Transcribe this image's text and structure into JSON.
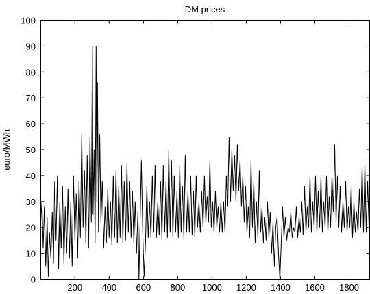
{
  "chart_data": {
    "type": "line",
    "title": "DM prices",
    "ylabel": "euro/MWh",
    "xlabel": "",
    "xlim": [
      1,
      1920
    ],
    "ylim": [
      0,
      100
    ],
    "x_ticks": [
      200,
      400,
      600,
      800,
      1000,
      1200,
      1400,
      1600,
      1800
    ],
    "x_tick_labels": [
      "200",
      "400",
      "600",
      "800",
      "1000",
      "1200",
      "1400",
      "1600",
      "1800"
    ],
    "y_ticks": [
      0,
      10,
      20,
      30,
      40,
      50,
      60,
      70,
      80,
      90,
      100
    ],
    "y_tick_labels": [
      "0",
      "10",
      "20",
      "30",
      "40",
      "50",
      "60",
      "70",
      "80",
      "90",
      "100"
    ],
    "grid": false,
    "line_color": "#000000",
    "series": [
      {
        "points": [
          [
            1,
            22
          ],
          [
            8,
            30
          ],
          [
            15,
            12
          ],
          [
            22,
            28
          ],
          [
            30,
            5
          ],
          [
            38,
            24
          ],
          [
            45,
            1
          ],
          [
            52,
            18
          ],
          [
            60,
            8
          ],
          [
            68,
            26
          ],
          [
            75,
            6
          ],
          [
            82,
            38
          ],
          [
            90,
            15
          ],
          [
            98,
            40
          ],
          [
            105,
            4
          ],
          [
            112,
            30
          ],
          [
            120,
            12
          ],
          [
            128,
            36
          ],
          [
            136,
            6
          ],
          [
            144,
            28
          ],
          [
            152,
            10
          ],
          [
            160,
            35
          ],
          [
            168,
            8
          ],
          [
            176,
            30
          ],
          [
            184,
            5
          ],
          [
            192,
            40
          ],
          [
            200,
            15
          ],
          [
            208,
            33
          ],
          [
            216,
            8
          ],
          [
            224,
            38
          ],
          [
            232,
            16
          ],
          [
            240,
            56
          ],
          [
            248,
            20
          ],
          [
            256,
            42
          ],
          [
            264,
            14
          ],
          [
            272,
            48
          ],
          [
            280,
            12
          ],
          [
            288,
            55
          ],
          [
            296,
            22
          ],
          [
            302,
            90
          ],
          [
            306,
            25
          ],
          [
            312,
            50
          ],
          [
            318,
            14
          ],
          [
            324,
            90
          ],
          [
            328,
            30
          ],
          [
            332,
            76
          ],
          [
            338,
            18
          ],
          [
            345,
            56
          ],
          [
            352,
            22
          ],
          [
            360,
            38
          ],
          [
            368,
            12
          ],
          [
            376,
            28
          ],
          [
            384,
            14
          ],
          [
            392,
            35
          ],
          [
            400,
            16
          ],
          [
            408,
            30
          ],
          [
            416,
            13
          ],
          [
            424,
            40
          ],
          [
            432,
            16
          ],
          [
            440,
            42
          ],
          [
            448,
            14
          ],
          [
            456,
            36
          ],
          [
            464,
            16
          ],
          [
            472,
            44
          ],
          [
            480,
            14
          ],
          [
            488,
            38
          ],
          [
            496,
            15
          ],
          [
            504,
            45
          ],
          [
            512,
            18
          ],
          [
            520,
            38
          ],
          [
            528,
            16
          ],
          [
            536,
            34
          ],
          [
            544,
            14
          ],
          [
            552,
            30
          ],
          [
            560,
            10
          ],
          [
            568,
            26
          ],
          [
            574,
            0
          ],
          [
            580,
            20
          ],
          [
            588,
            46
          ],
          [
            596,
            18
          ],
          [
            604,
            1
          ],
          [
            612,
            14
          ],
          [
            620,
            36
          ],
          [
            628,
            16
          ],
          [
            636,
            30
          ],
          [
            644,
            16
          ],
          [
            652,
            40
          ],
          [
            660,
            18
          ],
          [
            668,
            44
          ],
          [
            676,
            16
          ],
          [
            684,
            30
          ],
          [
            692,
            17
          ],
          [
            700,
            38
          ],
          [
            708,
            15
          ],
          [
            716,
            44
          ],
          [
            724,
            18
          ],
          [
            732,
            38
          ],
          [
            740,
            16
          ],
          [
            748,
            50
          ],
          [
            756,
            18
          ],
          [
            764,
            46
          ],
          [
            772,
            16
          ],
          [
            780,
            40
          ],
          [
            788,
            18
          ],
          [
            796,
            34
          ],
          [
            804,
            16
          ],
          [
            812,
            44
          ],
          [
            820,
            18
          ],
          [
            828,
            36
          ],
          [
            836,
            16
          ],
          [
            844,
            48
          ],
          [
            852,
            18
          ],
          [
            860,
            34
          ],
          [
            868,
            18
          ],
          [
            876,
            40
          ],
          [
            884,
            17
          ],
          [
            892,
            34
          ],
          [
            900,
            16
          ],
          [
            908,
            40
          ],
          [
            916,
            20
          ],
          [
            924,
            30
          ],
          [
            932,
            18
          ],
          [
            940,
            34
          ],
          [
            948,
            20
          ],
          [
            956,
            40
          ],
          [
            964,
            22
          ],
          [
            972,
            32
          ],
          [
            980,
            22
          ],
          [
            988,
            46
          ],
          [
            996,
            20
          ],
          [
            1004,
            30
          ],
          [
            1012,
            18
          ],
          [
            1020,
            34
          ],
          [
            1028,
            20
          ],
          [
            1036,
            28
          ],
          [
            1044,
            18
          ],
          [
            1052,
            30
          ],
          [
            1060,
            18
          ],
          [
            1068,
            30
          ],
          [
            1076,
            18
          ],
          [
            1084,
            40
          ],
          [
            1092,
            28
          ],
          [
            1100,
            55
          ],
          [
            1108,
            30
          ],
          [
            1116,
            50
          ],
          [
            1124,
            34
          ],
          [
            1132,
            48
          ],
          [
            1140,
            30
          ],
          [
            1148,
            52
          ],
          [
            1156,
            34
          ],
          [
            1164,
            46
          ],
          [
            1172,
            28
          ],
          [
            1180,
            40
          ],
          [
            1188,
            22
          ],
          [
            1196,
            36
          ],
          [
            1204,
            18
          ],
          [
            1212,
            28
          ],
          [
            1220,
            16
          ],
          [
            1228,
            46
          ],
          [
            1236,
            20
          ],
          [
            1244,
            38
          ],
          [
            1252,
            14
          ],
          [
            1260,
            30
          ],
          [
            1268,
            16
          ],
          [
            1276,
            42
          ],
          [
            1284,
            18
          ],
          [
            1292,
            28
          ],
          [
            1300,
            14
          ],
          [
            1308,
            24
          ],
          [
            1316,
            15
          ],
          [
            1324,
            30
          ],
          [
            1332,
            16
          ],
          [
            1340,
            26
          ],
          [
            1348,
            10
          ],
          [
            1356,
            22
          ],
          [
            1364,
            5
          ],
          [
            1372,
            20
          ],
          [
            1380,
            24
          ],
          [
            1388,
            10
          ],
          [
            1396,
            0
          ],
          [
            1404,
            14
          ],
          [
            1412,
            28
          ],
          [
            1420,
            16
          ],
          [
            1428,
            24
          ],
          [
            1436,
            15
          ],
          [
            1444,
            20
          ],
          [
            1452,
            18
          ],
          [
            1460,
            26
          ],
          [
            1468,
            16
          ],
          [
            1476,
            20
          ],
          [
            1484,
            18
          ],
          [
            1492,
            28
          ],
          [
            1500,
            16
          ],
          [
            1508,
            24
          ],
          [
            1516,
            18
          ],
          [
            1524,
            30
          ],
          [
            1532,
            17
          ],
          [
            1540,
            36
          ],
          [
            1548,
            18
          ],
          [
            1556,
            28
          ],
          [
            1564,
            20
          ],
          [
            1572,
            40
          ],
          [
            1580,
            18
          ],
          [
            1588,
            30
          ],
          [
            1596,
            20
          ],
          [
            1604,
            40
          ],
          [
            1612,
            18
          ],
          [
            1620,
            34
          ],
          [
            1628,
            20
          ],
          [
            1636,
            40
          ],
          [
            1644,
            18
          ],
          [
            1652,
            30
          ],
          [
            1660,
            20
          ],
          [
            1668,
            40
          ],
          [
            1676,
            18
          ],
          [
            1684,
            32
          ],
          [
            1692,
            20
          ],
          [
            1700,
            40
          ],
          [
            1708,
            26
          ],
          [
            1716,
            52
          ],
          [
            1724,
            22
          ],
          [
            1732,
            40
          ],
          [
            1740,
            20
          ],
          [
            1748,
            36
          ],
          [
            1756,
            18
          ],
          [
            1764,
            30
          ],
          [
            1772,
            20
          ],
          [
            1780,
            38
          ],
          [
            1788,
            18
          ],
          [
            1796,
            28
          ],
          [
            1804,
            20
          ],
          [
            1812,
            36
          ],
          [
            1820,
            16
          ],
          [
            1828,
            30
          ],
          [
            1836,
            18
          ],
          [
            1844,
            26
          ],
          [
            1852,
            18
          ],
          [
            1860,
            35
          ],
          [
            1868,
            20
          ],
          [
            1876,
            44
          ],
          [
            1884,
            18
          ],
          [
            1892,
            45
          ],
          [
            1900,
            18
          ],
          [
            1908,
            38
          ],
          [
            1916,
            20
          ],
          [
            1920,
            30
          ]
        ]
      }
    ]
  }
}
